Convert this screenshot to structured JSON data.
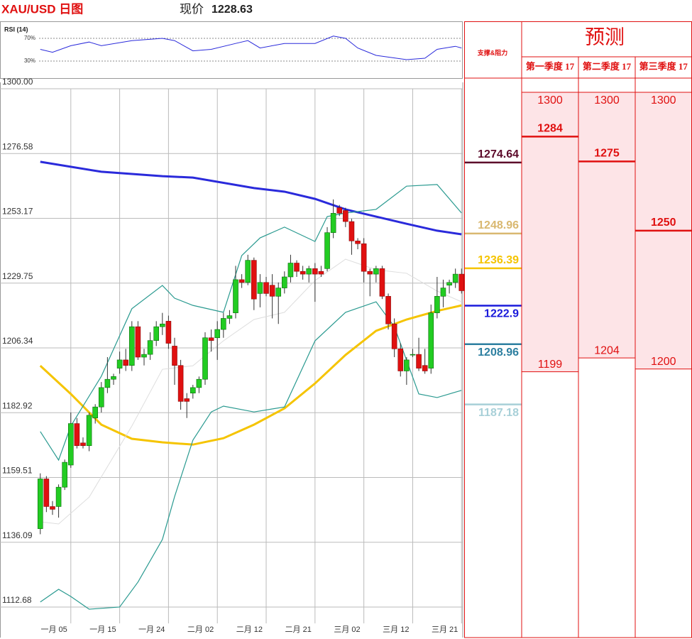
{
  "header": {
    "title": "XAU/USD 日图",
    "price_label": "现价",
    "price": 1228.63
  },
  "chart_data": [
    {
      "type": "line",
      "title": "RSI (14)",
      "color": "#2a2adb",
      "x": [
        0,
        2,
        5,
        8,
        10,
        15,
        20,
        22,
        25,
        28,
        32,
        34,
        36,
        40,
        45,
        48,
        50,
        52,
        55,
        60,
        63,
        65,
        68,
        69
      ],
      "values": [
        50.6,
        45.5,
        57,
        63.5,
        57,
        66,
        70,
        66,
        48,
        50.6,
        61,
        66,
        53,
        61,
        61,
        74,
        70,
        53,
        40,
        32.5,
        35,
        50.6,
        56,
        53
      ],
      "xlim": [
        -6.6,
        69.2
      ],
      "ylim": [
        10,
        90
      ],
      "yticks": [
        {
          "value": 30,
          "label": "30%"
        },
        {
          "value": 70,
          "label": "70%"
        }
      ]
    },
    {
      "type": "candlestick",
      "up_color": "#22cc22",
      "down_color": "#e01010",
      "grid": true,
      "xlim": [
        -6.6,
        69.2
      ],
      "ylim": [
        1112.68,
        1300
      ],
      "yticks": [
        1112.68,
        1136.09,
        1159.51,
        1182.92,
        1206.34,
        1229.75,
        1253.17,
        1276.58,
        {
          "value": 1300,
          "label": "1300.00"
        }
      ],
      "xticks": [
        {
          "value": 5,
          "label": "一月 05"
        },
        {
          "value": 13,
          "label": "一月 15"
        },
        {
          "value": 21,
          "label": "一月 24"
        },
        {
          "value": 29,
          "label": "二月 02"
        },
        {
          "value": 37,
          "label": "二月 12"
        },
        {
          "value": 45,
          "label": "二月 21"
        },
        {
          "value": 53,
          "label": "三月 02"
        },
        {
          "value": 61,
          "label": "三月 12"
        },
        {
          "value": 69,
          "label": "三月 21"
        }
      ],
      "open": [
        1141,
        1159,
        1149,
        1149,
        1156,
        1164,
        1179,
        1172,
        1171,
        1181,
        1185,
        1192,
        1195,
        1199,
        1202,
        1200,
        1214,
        1203,
        1204,
        1209,
        1214,
        1216,
        1207,
        1200,
        1188,
        1190,
        1192,
        1195,
        1210,
        1210,
        1213,
        1217,
        1219,
        1231,
        1230,
        1238,
        1226,
        1230,
        1229,
        1225,
        1228,
        1232,
        1237,
        1234,
        1233,
        1235,
        1234,
        1235,
        1248,
        1257,
        1256,
        1252,
        1245,
        1244,
        1234,
        1233,
        1235,
        1225,
        1215,
        1206,
        1198,
        1204,
        1204,
        1200,
        1199,
        1219,
        1225,
        1229,
        1230,
        1233
      ],
      "high": [
        1161,
        1160,
        1151,
        1157,
        1166,
        1183,
        1181,
        1174,
        1183,
        1186,
        1194,
        1203,
        1197,
        1205,
        1206,
        1216,
        1216,
        1206,
        1212,
        1216,
        1219,
        1218,
        1210,
        1202,
        1190,
        1193,
        1196,
        1212,
        1213,
        1216,
        1219,
        1220,
        1236,
        1233,
        1240,
        1239,
        1233,
        1232,
        1233,
        1230,
        1234,
        1240,
        1238,
        1236,
        1236,
        1237,
        1236,
        1250,
        1260,
        1258,
        1257,
        1253,
        1246,
        1246,
        1235,
        1236,
        1236,
        1226,
        1217,
        1208,
        1203,
        1206,
        1210,
        1206,
        1222,
        1232,
        1231,
        1231,
        1235,
        1235
      ],
      "low": [
        1139,
        1147,
        1146,
        1145,
        1155,
        1163,
        1170,
        1170,
        1169,
        1179,
        1183,
        1190,
        1193,
        1197,
        1198,
        1198,
        1202,
        1200,
        1202,
        1207,
        1211,
        1206,
        1193,
        1184,
        1181,
        1188,
        1190,
        1193,
        1205,
        1202,
        1210,
        1215,
        1217,
        1228,
        1229,
        1220,
        1221,
        1225,
        1217,
        1215,
        1226,
        1230,
        1232,
        1231,
        1230,
        1223,
        1232,
        1234,
        1246,
        1254,
        1250,
        1240,
        1242,
        1230,
        1225,
        1230,
        1224,
        1213,
        1203,
        1196,
        1193,
        1203,
        1198,
        1197,
        1197,
        1217,
        1221,
        1226,
        1228,
        1226
      ],
      "close": [
        1159,
        1149,
        1148,
        1156,
        1165,
        1179,
        1171,
        1171,
        1182,
        1185,
        1192,
        1195,
        1196,
        1202,
        1200,
        1214,
        1203,
        1204,
        1209,
        1214,
        1215,
        1208,
        1200,
        1187,
        1187,
        1192,
        1195,
        1210,
        1209,
        1213,
        1217,
        1218,
        1231,
        1230,
        1238,
        1224,
        1230,
        1226,
        1225,
        1228,
        1232,
        1237,
        1234,
        1233,
        1235,
        1233,
        1233,
        1248,
        1255,
        1255,
        1252,
        1245,
        1244,
        1234,
        1233,
        1235,
        1225,
        1215,
        1206,
        1198,
        1202,
        1204,
        1199,
        1198,
        1219,
        1225,
        1228,
        1230,
        1233,
        1227
      ],
      "overlays": [
        {
          "color": "#2a2adb",
          "width": 3,
          "x": [
            0,
            10,
            20,
            25,
            35,
            40,
            45,
            50,
            55,
            60,
            65,
            69
          ],
          "values": [
            1273.6,
            1270.0,
            1268.4,
            1267.9,
            1264.1,
            1262.8,
            1260.2,
            1256.4,
            1253.8,
            1251.2,
            1248.7,
            1247.4
          ]
        },
        {
          "color": "#f5c400",
          "width": 3,
          "x": [
            0,
            5,
            10,
            15,
            20,
            25,
            30,
            35,
            40,
            45,
            50,
            55,
            60,
            65,
            69
          ],
          "values": [
            1199.9,
            1189.7,
            1178.6,
            1173.5,
            1172.2,
            1171.4,
            1173.7,
            1178.6,
            1184.5,
            1193.5,
            1203.8,
            1212.5,
            1216.6,
            1219.7,
            1221.7
          ]
        },
        {
          "color": "#2a9a90",
          "width": 1.2,
          "x": [
            0,
            3,
            5,
            10,
            15,
            20,
            22,
            25,
            30,
            33,
            36,
            40,
            45,
            47,
            50,
            55,
            60,
            65,
            69
          ],
          "values": [
            1176.1,
            1165.8,
            1178.1,
            1196.1,
            1220.5,
            1228.9,
            1224.3,
            1221.7,
            1219.2,
            1239.7,
            1246.1,
            1250.0,
            1244.8,
            1253.8,
            1255.1,
            1256.4,
            1264.8,
            1265.4,
            1255.1
          ]
        },
        {
          "color": "#2a9a90",
          "width": 1.2,
          "x": [
            0,
            3,
            5,
            8,
            13,
            16,
            20,
            22,
            25,
            28,
            30,
            35,
            40,
            45,
            50,
            55,
            58,
            62,
            65,
            69
          ],
          "values": [
            1114.5,
            1119.1,
            1116.5,
            1111.9,
            1112.7,
            1121.7,
            1137.1,
            1152.6,
            1173.0,
            1183.2,
            1185.3,
            1183.2,
            1185.0,
            1208.9,
            1219.2,
            1223.0,
            1214.0,
            1189.7,
            1188.4,
            1191.0
          ]
        },
        {
          "color": "#dddddd",
          "width": 1,
          "x": [
            0,
            3,
            8,
            15,
            20,
            25,
            30,
            35,
            40,
            45,
            50,
            55,
            60,
            65,
            69
          ],
          "values": [
            1143.5,
            1142.7,
            1152.4,
            1178.1,
            1198.6,
            1199.9,
            1208.9,
            1216.6,
            1219.2,
            1230.7,
            1238.4,
            1234.6,
            1233.3,
            1226.9,
            1223.0
          ]
        }
      ]
    }
  ],
  "forecast": {
    "title": "预测",
    "label_header": "支撑&阻力",
    "color": "#e01010",
    "fill": "#fde4e7",
    "levels": [
      {
        "value": 1274.64,
        "color": "#5c0a2a"
      },
      {
        "value": 1248.96,
        "color": "#d9b870"
      },
      {
        "value": 1236.39,
        "color": "#f5c400"
      },
      {
        "value": 1222.9,
        "color": "#1a1adb"
      },
      {
        "value": 1208.96,
        "color": "#2d7fa0"
      },
      {
        "value": 1187.18,
        "color": "#a8d0d8"
      }
    ],
    "columns": [
      {
        "name": "第一季度 17",
        "values": [
          1300,
          1284,
          1199
        ]
      },
      {
        "name": "第二季度 17",
        "values": [
          1300,
          1275,
          1204
        ]
      },
      {
        "name": "第三季度 17",
        "values": [
          1300,
          1250,
          1200
        ]
      }
    ]
  }
}
